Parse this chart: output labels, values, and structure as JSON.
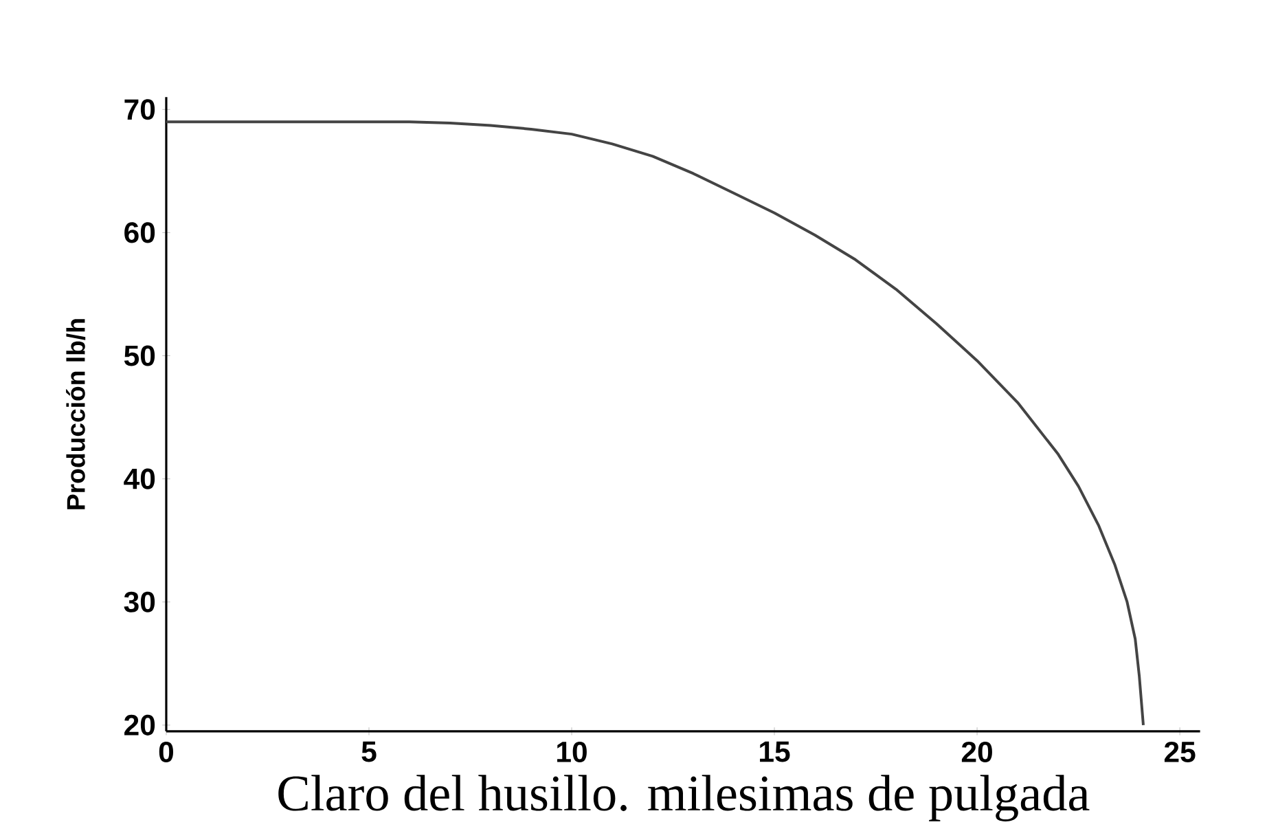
{
  "chart_data": {
    "type": "line",
    "xlabel": "Claro del husillo. milesimas de pulgada",
    "ylabel": "Producción lb/h",
    "x": [
      0,
      2,
      4,
      6,
      7,
      8,
      9,
      10,
      11,
      12,
      13,
      14,
      15,
      16,
      17,
      18,
      19,
      20,
      21,
      22,
      22.5,
      23,
      23.4,
      23.7,
      23.9,
      24,
      24.1
    ],
    "series": [
      {
        "color": "#444444",
        "values": [
          69,
          69,
          69,
          69,
          68.9,
          68.7,
          68.4,
          68,
          67.2,
          66.2,
          64.8,
          63.2,
          61.6,
          59.8,
          57.8,
          55.4,
          52.6,
          49.6,
          46.2,
          42,
          39.4,
          36.2,
          33,
          30,
          27,
          24,
          20
        ]
      }
    ],
    "xlim": [
      0,
      25.5
    ],
    "ylim": [
      19.5,
      71
    ],
    "xticks": [
      0,
      5,
      10,
      15,
      20,
      25
    ],
    "yticks": [
      20,
      30,
      40,
      50,
      60,
      70
    ],
    "grid": false,
    "marker": "none",
    "line_style": "solid"
  }
}
